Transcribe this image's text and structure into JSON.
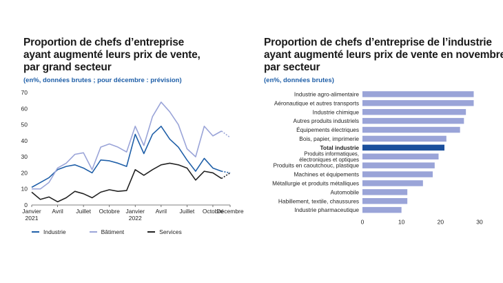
{
  "left": {
    "title_lines": [
      "Proportion de chefs d’entreprise",
      "ayant augmenté leurs prix de vente,",
      "par grand secteur"
    ],
    "subtitle": "(en%, données brutes ; pour décembre : prévision)",
    "legend": [
      "Industrie",
      "Bâtiment",
      "Services"
    ]
  },
  "right": {
    "title_lines": [
      "Proportion de chefs d’entreprise de l’industrie",
      "ayant augmenté leurs prix de vente en novembre,",
      "par secteur"
    ],
    "subtitle": "(en%, données brutes)"
  },
  "chart_data": [
    {
      "type": "line",
      "title": "Proportion de chefs d’entreprise ayant augmenté leurs prix de vente, par grand secteur",
      "ylim": [
        0,
        70
      ],
      "yticks": [
        0,
        10,
        20,
        30,
        40,
        50,
        60,
        70
      ],
      "x": [
        "2021-01",
        "2021-02",
        "2021-03",
        "2021-04",
        "2021-05",
        "2021-06",
        "2021-07",
        "2021-08",
        "2021-09",
        "2021-10",
        "2021-11",
        "2021-12",
        "2022-01",
        "2022-02",
        "2022-03",
        "2022-04",
        "2022-05",
        "2022-06",
        "2022-07",
        "2022-08",
        "2022-09",
        "2022-10",
        "2022-11",
        "2022-12"
      ],
      "xtick_labels": [
        {
          "x": "2021-01",
          "lines": [
            "Janvier",
            "2021"
          ]
        },
        {
          "x": "2021-04",
          "lines": [
            "Avril"
          ]
        },
        {
          "x": "2021-07",
          "lines": [
            "Juillet"
          ]
        },
        {
          "x": "2021-10",
          "lines": [
            "Octobre"
          ]
        },
        {
          "x": "2022-01",
          "lines": [
            "Janvier",
            "2022"
          ]
        },
        {
          "x": "2022-04",
          "lines": [
            "Avril"
          ]
        },
        {
          "x": "2022-07",
          "lines": [
            "Juillet"
          ]
        },
        {
          "x": "2022-10",
          "lines": [
            "Octobre"
          ]
        },
        {
          "x": "2022-12",
          "lines": [
            "Décembre"
          ]
        }
      ],
      "forecast_from": "2022-11",
      "series": [
        {
          "name": "Industrie",
          "color": "#1f5fa8",
          "values": [
            11,
            14,
            17,
            22,
            24,
            25,
            23,
            20,
            28,
            27.5,
            26,
            24,
            44,
            32,
            44,
            49,
            41,
            36,
            28,
            21,
            29,
            23,
            21,
            20
          ]
        },
        {
          "name": "Bâtiment",
          "color": "#9aa4d8",
          "values": [
            10,
            10,
            14,
            23,
            26,
            31.5,
            32.5,
            22,
            36,
            38,
            36,
            33,
            49,
            37,
            55,
            64,
            58,
            50,
            35,
            30,
            49,
            43,
            46,
            42
          ]
        },
        {
          "name": "Services",
          "color": "#222222",
          "values": [
            8,
            3.5,
            5,
            2,
            4.5,
            8.5,
            7,
            4.5,
            8,
            9.5,
            8.5,
            9,
            22,
            18.5,
            22,
            25,
            26,
            25,
            23,
            15.5,
            21,
            20,
            16.5,
            20
          ]
        }
      ]
    },
    {
      "type": "bar",
      "orientation": "horizontal",
      "title": "Proportion de chefs d’entreprise de l’industrie ayant augmenté leurs prix de vente en novembre, par secteur",
      "xlim": [
        0,
        30
      ],
      "xticks": [
        0,
        10,
        20,
        30
      ],
      "highlight_color": "#1a4f9c",
      "bar_color": "#9aa4d8",
      "categories": [
        {
          "label": [
            "Industrie agro-alimentaire"
          ],
          "value": 28.5
        },
        {
          "label": [
            "Aéronautique et autres transports"
          ],
          "value": 28.5
        },
        {
          "label": [
            "Industrie chimique"
          ],
          "value": 26.5
        },
        {
          "label": [
            "Autres produits industriels"
          ],
          "value": 26
        },
        {
          "label": [
            "Équipements électriques"
          ],
          "value": 25
        },
        {
          "label": [
            "Bois, papier, imprimerie"
          ],
          "value": 21.5
        },
        {
          "label": [
            "Total industrie"
          ],
          "value": 21,
          "highlight": true
        },
        {
          "label": [
            "Produits informatiques,",
            "électroniques et optiques"
          ],
          "value": 19.5
        },
        {
          "label": [
            "Produits en caoutchouc, plastique"
          ],
          "value": 18.5
        },
        {
          "label": [
            "Machines et équipements"
          ],
          "value": 18
        },
        {
          "label": [
            "Métallurgie et produits métalliques"
          ],
          "value": 15.5
        },
        {
          "label": [
            "Automobile"
          ],
          "value": 11.5
        },
        {
          "label": [
            "Habillement, textile, chaussures"
          ],
          "value": 11.5
        },
        {
          "label": [
            "Industrie pharmaceutique"
          ],
          "value": 10
        }
      ]
    }
  ]
}
